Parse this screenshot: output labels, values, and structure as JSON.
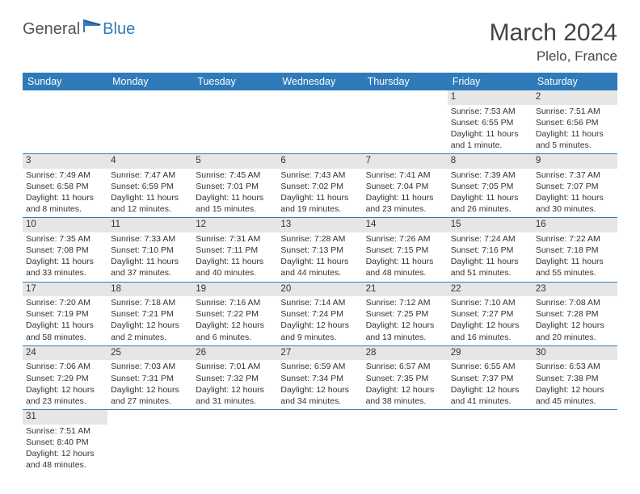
{
  "brand": {
    "text1": "General",
    "text2": "Blue"
  },
  "title": "March 2024",
  "location": "Plelo, France",
  "colors": {
    "header_bg": "#2f7ab9",
    "header_text": "#ffffff",
    "daynum_bg": "#e6e6e6",
    "border": "#2f7ab9",
    "text": "#333333",
    "bg": "#ffffff"
  },
  "day_headers": [
    "Sunday",
    "Monday",
    "Tuesday",
    "Wednesday",
    "Thursday",
    "Friday",
    "Saturday"
  ],
  "weeks": [
    [
      {
        "n": "",
        "sunrise": "",
        "sunset": "",
        "daylight": ""
      },
      {
        "n": "",
        "sunrise": "",
        "sunset": "",
        "daylight": ""
      },
      {
        "n": "",
        "sunrise": "",
        "sunset": "",
        "daylight": ""
      },
      {
        "n": "",
        "sunrise": "",
        "sunset": "",
        "daylight": ""
      },
      {
        "n": "",
        "sunrise": "",
        "sunset": "",
        "daylight": ""
      },
      {
        "n": "1",
        "sunrise": "Sunrise: 7:53 AM",
        "sunset": "Sunset: 6:55 PM",
        "daylight": "Daylight: 11 hours and 1 minute."
      },
      {
        "n": "2",
        "sunrise": "Sunrise: 7:51 AM",
        "sunset": "Sunset: 6:56 PM",
        "daylight": "Daylight: 11 hours and 5 minutes."
      }
    ],
    [
      {
        "n": "3",
        "sunrise": "Sunrise: 7:49 AM",
        "sunset": "Sunset: 6:58 PM",
        "daylight": "Daylight: 11 hours and 8 minutes."
      },
      {
        "n": "4",
        "sunrise": "Sunrise: 7:47 AM",
        "sunset": "Sunset: 6:59 PM",
        "daylight": "Daylight: 11 hours and 12 minutes."
      },
      {
        "n": "5",
        "sunrise": "Sunrise: 7:45 AM",
        "sunset": "Sunset: 7:01 PM",
        "daylight": "Daylight: 11 hours and 15 minutes."
      },
      {
        "n": "6",
        "sunrise": "Sunrise: 7:43 AM",
        "sunset": "Sunset: 7:02 PM",
        "daylight": "Daylight: 11 hours and 19 minutes."
      },
      {
        "n": "7",
        "sunrise": "Sunrise: 7:41 AM",
        "sunset": "Sunset: 7:04 PM",
        "daylight": "Daylight: 11 hours and 23 minutes."
      },
      {
        "n": "8",
        "sunrise": "Sunrise: 7:39 AM",
        "sunset": "Sunset: 7:05 PM",
        "daylight": "Daylight: 11 hours and 26 minutes."
      },
      {
        "n": "9",
        "sunrise": "Sunrise: 7:37 AM",
        "sunset": "Sunset: 7:07 PM",
        "daylight": "Daylight: 11 hours and 30 minutes."
      }
    ],
    [
      {
        "n": "10",
        "sunrise": "Sunrise: 7:35 AM",
        "sunset": "Sunset: 7:08 PM",
        "daylight": "Daylight: 11 hours and 33 minutes."
      },
      {
        "n": "11",
        "sunrise": "Sunrise: 7:33 AM",
        "sunset": "Sunset: 7:10 PM",
        "daylight": "Daylight: 11 hours and 37 minutes."
      },
      {
        "n": "12",
        "sunrise": "Sunrise: 7:31 AM",
        "sunset": "Sunset: 7:11 PM",
        "daylight": "Daylight: 11 hours and 40 minutes."
      },
      {
        "n": "13",
        "sunrise": "Sunrise: 7:28 AM",
        "sunset": "Sunset: 7:13 PM",
        "daylight": "Daylight: 11 hours and 44 minutes."
      },
      {
        "n": "14",
        "sunrise": "Sunrise: 7:26 AM",
        "sunset": "Sunset: 7:15 PM",
        "daylight": "Daylight: 11 hours and 48 minutes."
      },
      {
        "n": "15",
        "sunrise": "Sunrise: 7:24 AM",
        "sunset": "Sunset: 7:16 PM",
        "daylight": "Daylight: 11 hours and 51 minutes."
      },
      {
        "n": "16",
        "sunrise": "Sunrise: 7:22 AM",
        "sunset": "Sunset: 7:18 PM",
        "daylight": "Daylight: 11 hours and 55 minutes."
      }
    ],
    [
      {
        "n": "17",
        "sunrise": "Sunrise: 7:20 AM",
        "sunset": "Sunset: 7:19 PM",
        "daylight": "Daylight: 11 hours and 58 minutes."
      },
      {
        "n": "18",
        "sunrise": "Sunrise: 7:18 AM",
        "sunset": "Sunset: 7:21 PM",
        "daylight": "Daylight: 12 hours and 2 minutes."
      },
      {
        "n": "19",
        "sunrise": "Sunrise: 7:16 AM",
        "sunset": "Sunset: 7:22 PM",
        "daylight": "Daylight: 12 hours and 6 minutes."
      },
      {
        "n": "20",
        "sunrise": "Sunrise: 7:14 AM",
        "sunset": "Sunset: 7:24 PM",
        "daylight": "Daylight: 12 hours and 9 minutes."
      },
      {
        "n": "21",
        "sunrise": "Sunrise: 7:12 AM",
        "sunset": "Sunset: 7:25 PM",
        "daylight": "Daylight: 12 hours and 13 minutes."
      },
      {
        "n": "22",
        "sunrise": "Sunrise: 7:10 AM",
        "sunset": "Sunset: 7:27 PM",
        "daylight": "Daylight: 12 hours and 16 minutes."
      },
      {
        "n": "23",
        "sunrise": "Sunrise: 7:08 AM",
        "sunset": "Sunset: 7:28 PM",
        "daylight": "Daylight: 12 hours and 20 minutes."
      }
    ],
    [
      {
        "n": "24",
        "sunrise": "Sunrise: 7:06 AM",
        "sunset": "Sunset: 7:29 PM",
        "daylight": "Daylight: 12 hours and 23 minutes."
      },
      {
        "n": "25",
        "sunrise": "Sunrise: 7:03 AM",
        "sunset": "Sunset: 7:31 PM",
        "daylight": "Daylight: 12 hours and 27 minutes."
      },
      {
        "n": "26",
        "sunrise": "Sunrise: 7:01 AM",
        "sunset": "Sunset: 7:32 PM",
        "daylight": "Daylight: 12 hours and 31 minutes."
      },
      {
        "n": "27",
        "sunrise": "Sunrise: 6:59 AM",
        "sunset": "Sunset: 7:34 PM",
        "daylight": "Daylight: 12 hours and 34 minutes."
      },
      {
        "n": "28",
        "sunrise": "Sunrise: 6:57 AM",
        "sunset": "Sunset: 7:35 PM",
        "daylight": "Daylight: 12 hours and 38 minutes."
      },
      {
        "n": "29",
        "sunrise": "Sunrise: 6:55 AM",
        "sunset": "Sunset: 7:37 PM",
        "daylight": "Daylight: 12 hours and 41 minutes."
      },
      {
        "n": "30",
        "sunrise": "Sunrise: 6:53 AM",
        "sunset": "Sunset: 7:38 PM",
        "daylight": "Daylight: 12 hours and 45 minutes."
      }
    ],
    [
      {
        "n": "31",
        "sunrise": "Sunrise: 7:51 AM",
        "sunset": "Sunset: 8:40 PM",
        "daylight": "Daylight: 12 hours and 48 minutes."
      },
      {
        "n": "",
        "sunrise": "",
        "sunset": "",
        "daylight": ""
      },
      {
        "n": "",
        "sunrise": "",
        "sunset": "",
        "daylight": ""
      },
      {
        "n": "",
        "sunrise": "",
        "sunset": "",
        "daylight": ""
      },
      {
        "n": "",
        "sunrise": "",
        "sunset": "",
        "daylight": ""
      },
      {
        "n": "",
        "sunrise": "",
        "sunset": "",
        "daylight": ""
      },
      {
        "n": "",
        "sunrise": "",
        "sunset": "",
        "daylight": ""
      }
    ]
  ]
}
